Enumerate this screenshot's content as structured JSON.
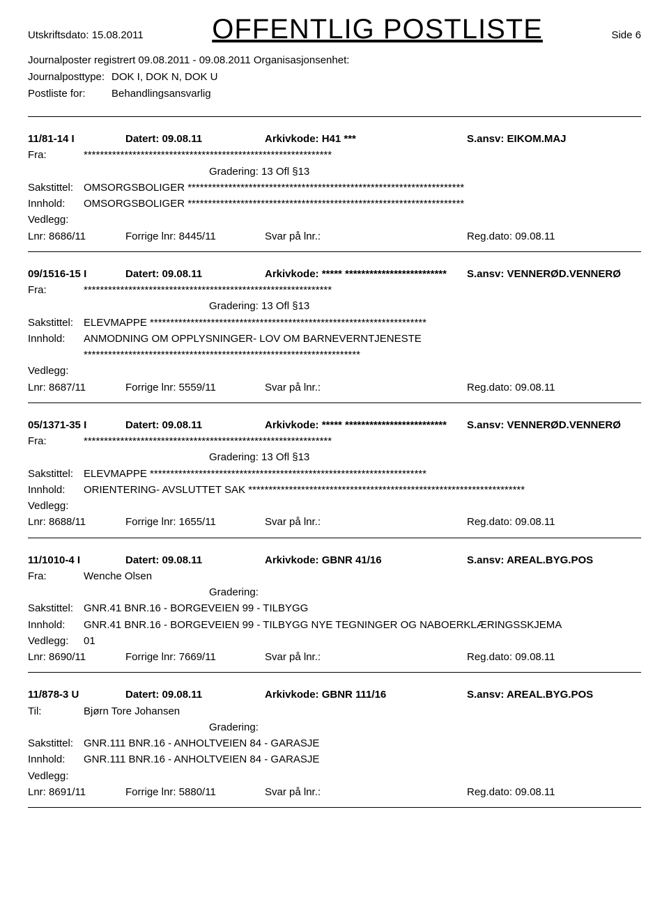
{
  "header": {
    "print_label": "Utskriftsdato:",
    "print_date": "15.08.2011",
    "title": "OFFENTLIG POSTLISTE",
    "page_label": "Side 6"
  },
  "meta": {
    "jp_reg_label": "Journalposter registrert",
    "jp_reg_range": "09.08.2011 - 09.08.2011",
    "org_label": "Organisasjonsenhet:",
    "org_value": "",
    "jp_type_label": "Journalposttype:",
    "jp_type_value": "DOK I, DOK N, DOK U",
    "postliste_label": "Postliste for:",
    "postliste_value": "Behandlingsansvarlig"
  },
  "labels": {
    "datert": "Datert:",
    "arkivkode": "Arkivkode:",
    "sansv": "S.ansv:",
    "fra": "Fra:",
    "til": "Til:",
    "gradering": "Gradering:",
    "sakstittel": "Sakstittel:",
    "innhold": "Innhold:",
    "vedlegg": "Vedlegg:",
    "lnr": "Lnr:",
    "forrige_lnr": "Forrige lnr:",
    "svar": "Svar på lnr.:",
    "regdato": "Reg.dato:"
  },
  "entries": [
    {
      "ref": "11/81-14 I",
      "datert": "09.08.11",
      "arkivkode": "H41 ***",
      "sansv": "EIKOM.MAJ",
      "party_label": "Fra:",
      "party_value": "*************************************************************",
      "gradering": "13 Ofl §13",
      "sakstittel": "OMSORGSBOLIGER  ********************************************************************",
      "innhold": "OMSORGSBOLIGER  ********************************************************************",
      "vedlegg": "",
      "lnr": "8686/11",
      "forrige_lnr": "8445/11",
      "svar": "",
      "regdato": "09.08.11"
    },
    {
      "ref": "09/1516-15 I",
      "datert": "09.08.11",
      "arkivkode": "***** *************************",
      "sansv": "VENNERØD.VENNERØ",
      "party_label": "Fra:",
      "party_value": "*************************************************************",
      "gradering": "13 Ofl §13",
      "sakstittel": "ELEVMAPPE  ********************************************************************",
      "innhold": "ANMODNING OM OPPLYSNINGER- LOV OM BARNEVERNTJENESTE ********************************************************************",
      "vedlegg": "",
      "lnr": "8687/11",
      "forrige_lnr": "5559/11",
      "svar": "",
      "regdato": "09.08.11"
    },
    {
      "ref": "05/1371-35 I",
      "datert": "09.08.11",
      "arkivkode": "***** *************************",
      "sansv": "VENNERØD.VENNERØ",
      "party_label": "Fra:",
      "party_value": "*************************************************************",
      "gradering": "13 Ofl §13",
      "sakstittel": "ELEVMAPPE  ********************************************************************",
      "innhold": "ORIENTERING- AVSLUTTET SAK  ********************************************************************",
      "vedlegg": "",
      "lnr": "8688/11",
      "forrige_lnr": "1655/11",
      "svar": "",
      "regdato": "09.08.11"
    },
    {
      "ref": "11/1010-4 I",
      "datert": "09.08.11",
      "arkivkode": "GBNR 41/16",
      "sansv": "AREAL.BYG.POS",
      "party_label": "Fra:",
      "party_value": "Wenche Olsen",
      "gradering": "",
      "sakstittel": "GNR.41 BNR.16 - BORGEVEIEN 99 - TILBYGG",
      "innhold": "GNR.41 BNR.16 - BORGEVEIEN 99 - TILBYGG  NYE TEGNINGER OG NABOERKLÆRINGSSKJEMA",
      "vedlegg": "01",
      "lnr": "8690/11",
      "forrige_lnr": "7669/11",
      "svar": "",
      "regdato": "09.08.11"
    },
    {
      "ref": "11/878-3 U",
      "datert": "09.08.11",
      "arkivkode": "GBNR 111/16",
      "sansv": "AREAL.BYG.POS",
      "party_label": "Til:",
      "party_value": "Bjørn Tore Johansen",
      "gradering": "",
      "sakstittel": "GNR.111 BNR.16 - ANHOLTVEIEN 84 - GARASJE",
      "innhold": "GNR.111 BNR.16 - ANHOLTVEIEN 84 - GARASJE",
      "vedlegg": "",
      "lnr": "8691/11",
      "forrige_lnr": "5880/11",
      "svar": "",
      "regdato": "09.08.11"
    }
  ]
}
